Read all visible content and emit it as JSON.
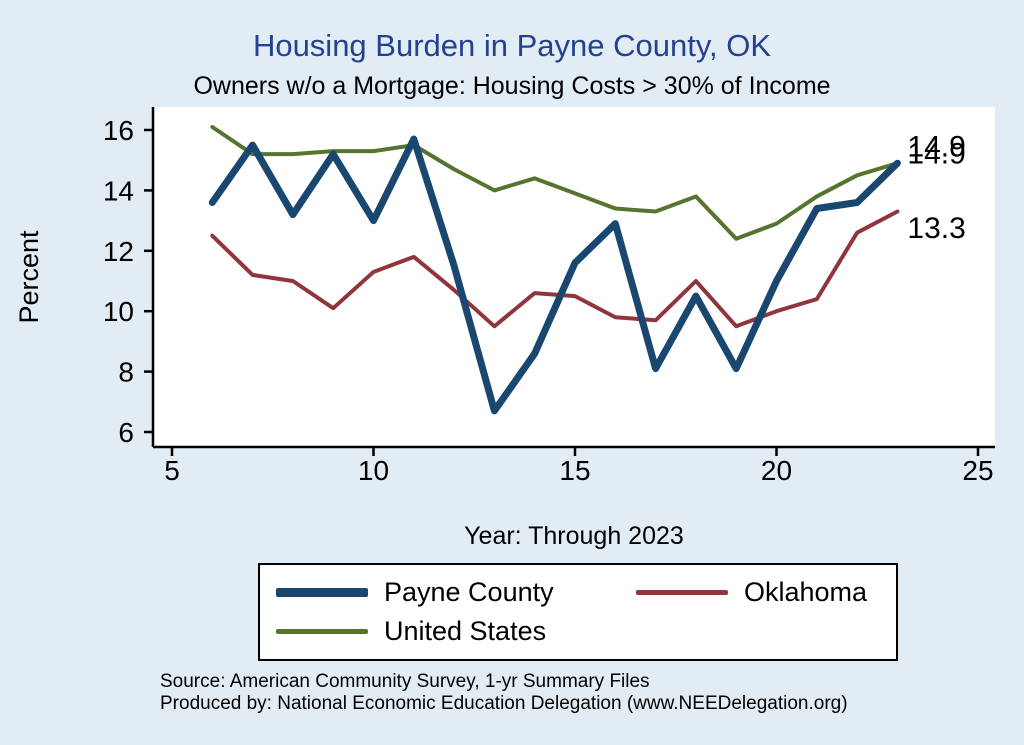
{
  "title": "Housing Burden in Payne County, OK",
  "subtitle": "Owners w/o a Mortgage: Housing Costs > 30% of Income",
  "colors": {
    "background": "#e2ecf5",
    "title": "#23418f",
    "axis": "#000000",
    "plot_background": "#ffffff"
  },
  "chart_data": {
    "type": "line",
    "title": "Housing Burden in Payne County, OK",
    "subtitle": "Owners w/o a Mortgage: Housing Costs > 30% of Income",
    "xlabel": "Year: Through 2023",
    "ylabel": "Percent",
    "xlim": [
      5,
      25
    ],
    "ylim": [
      6,
      16
    ],
    "xticks": [
      5,
      10,
      15,
      20,
      25
    ],
    "yticks": [
      6,
      8,
      10,
      12,
      14,
      16
    ],
    "grid": false,
    "legend_position": "bottom",
    "x": [
      6,
      7,
      8,
      9,
      10,
      11,
      12,
      13,
      14,
      15,
      16,
      17,
      18,
      19,
      20,
      21,
      22,
      23
    ],
    "series": [
      {
        "name": "United States",
        "color": "#55752f",
        "width": 4,
        "values": [
          16.1,
          15.2,
          15.2,
          15.3,
          15.3,
          15.5,
          14.7,
          14.0,
          14.4,
          13.9,
          13.4,
          13.3,
          13.8,
          12.4,
          12.9,
          13.8,
          14.5,
          14.9
        ]
      },
      {
        "name": "Oklahoma",
        "color": "#90353b",
        "width": 4,
        "values": [
          12.5,
          11.2,
          11.0,
          10.1,
          11.3,
          11.8,
          10.7,
          9.5,
          10.6,
          10.5,
          9.8,
          9.7,
          11.0,
          9.5,
          10.0,
          10.4,
          12.6,
          13.3
        ]
      },
      {
        "name": "Payne County",
        "color": "#1a476f",
        "width": 7,
        "values": [
          13.6,
          15.5,
          13.2,
          15.2,
          13.0,
          15.7,
          11.5,
          6.7,
          8.6,
          11.6,
          12.9,
          8.1,
          10.5,
          8.1,
          11.0,
          13.4,
          13.6,
          14.9
        ]
      }
    ],
    "end_labels": [
      {
        "text": "14.9",
        "at": 15.45
      },
      {
        "text": "14.9",
        "at": 15.22
      },
      {
        "text": "13.3",
        "at": 12.75
      }
    ]
  },
  "legend": {
    "items": [
      {
        "label": "Payne County"
      },
      {
        "label": "Oklahoma"
      },
      {
        "label": "United States"
      }
    ]
  },
  "source": {
    "line1": "Source: American Community Survey, 1-yr Summary Files",
    "line2": "Produced by: National Economic Education Delegation (www.NEEDelegation.org)"
  }
}
